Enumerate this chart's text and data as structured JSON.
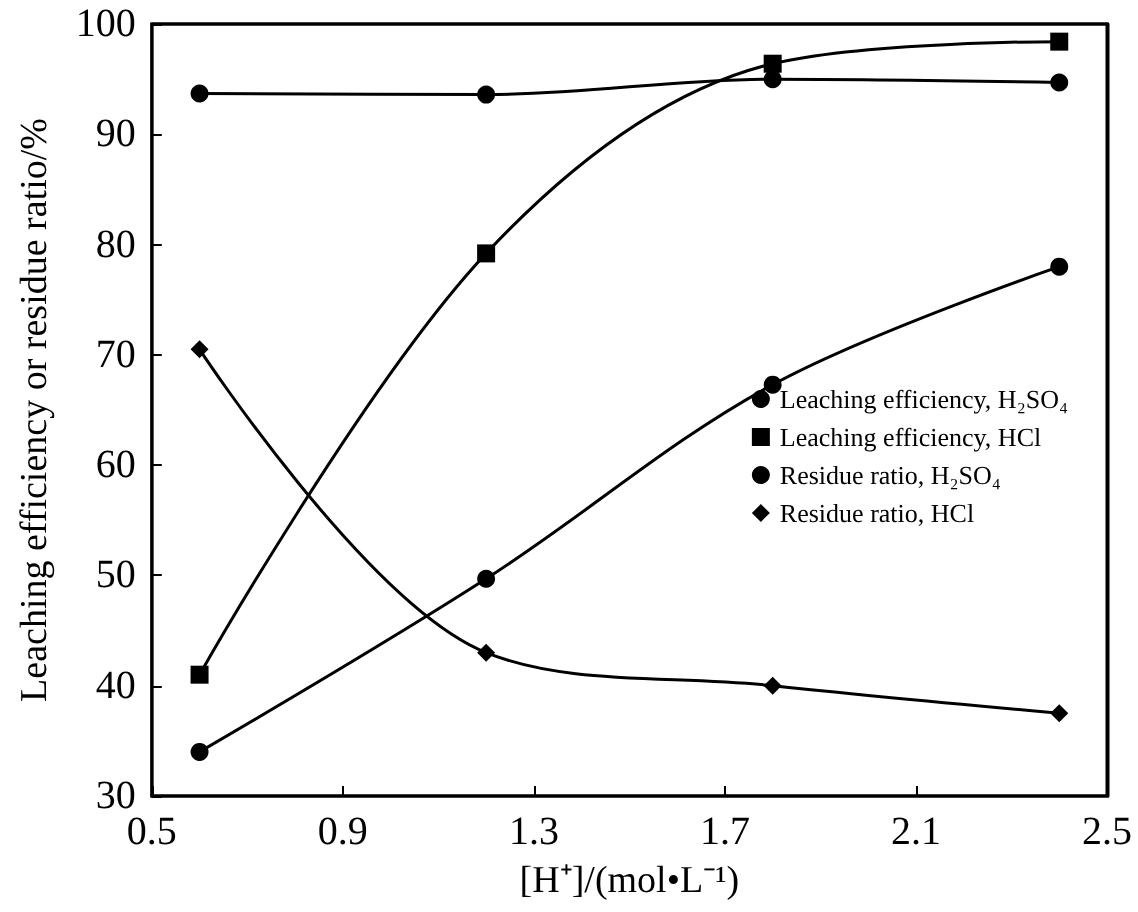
{
  "chart_data": {
    "type": "line",
    "xlabel": "[H⁺]/(mol•L⁻¹)",
    "ylabel": "Leaching efficiency or residue ratio/%",
    "x": [
      0.6,
      1.2,
      1.8,
      2.4
    ],
    "series": [
      {
        "name": "Leaching efficiency, H₂SO₄",
        "color": "#000000",
        "marker": "circle",
        "values": [
          34,
          49.7,
          67.3,
          78
        ]
      },
      {
        "name": "Leaching efficiency, HCl",
        "color": "#000000",
        "marker": "square",
        "values": [
          41,
          79.2,
          96.4,
          98.4
        ]
      },
      {
        "name": "Residue ratio, H₂SO₄",
        "color": "#000000",
        "marker": "circle",
        "values": [
          93.7,
          93.6,
          95,
          94.7
        ]
      },
      {
        "name": "Residue ratio, HCl",
        "color": "#000000",
        "marker": "diamond",
        "values": [
          70.5,
          43,
          40,
          37.5
        ]
      }
    ],
    "xlim": [
      0.5,
      2.5
    ],
    "xticks": [
      0.5,
      0.9,
      1.3,
      1.7,
      2.1,
      2.5
    ],
    "ylim": [
      30,
      100
    ],
    "yticks": [
      30,
      40,
      50,
      60,
      70,
      80,
      90,
      100
    ],
    "grid": false,
    "legend": "right",
    "line_style": "solid"
  }
}
